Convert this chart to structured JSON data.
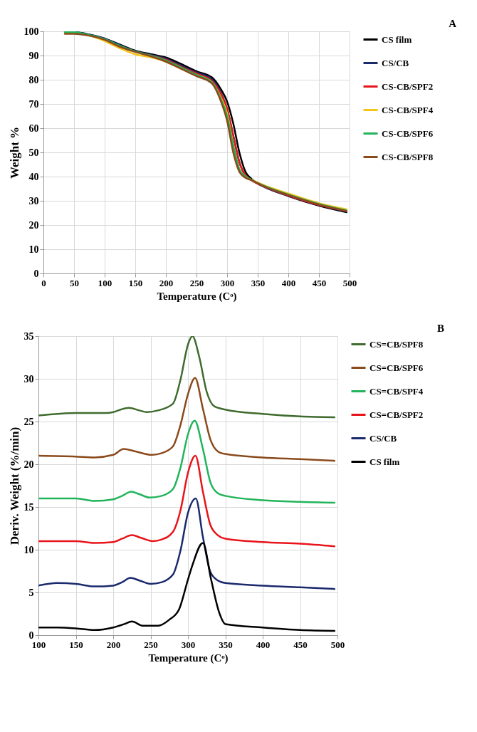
{
  "chart_data": [
    {
      "type": "line",
      "xlabel": "Temperature (Cᵒ)",
      "ylabel": "Weight %",
      "annotations": [
        "A"
      ],
      "xlim": [
        0,
        500
      ],
      "xticks": [
        0,
        50,
        100,
        150,
        200,
        250,
        300,
        350,
        400,
        450,
        500
      ],
      "ylim": [
        0,
        100
      ],
      "yticks": [
        0,
        10,
        20,
        30,
        40,
        50,
        60,
        70,
        80,
        90,
        100
      ],
      "grid": true,
      "legend": "right",
      "x": [
        35,
        50,
        75,
        100,
        125,
        150,
        175,
        200,
        225,
        250,
        275,
        290,
        300,
        310,
        320,
        330,
        340,
        360,
        400,
        450,
        495
      ],
      "series": [
        {
          "name": "CS film",
          "color": "#000000",
          "values": [
            99.5,
            99.6,
            98.7,
            97,
            94.5,
            92,
            90.6,
            89.2,
            86.5,
            83.5,
            81,
            76,
            71,
            62,
            50,
            42,
            39,
            36,
            32,
            28,
            25.3
          ]
        },
        {
          "name": "CS/CB",
          "color": "#1a2a6c",
          "values": [
            99.8,
            99.7,
            98.6,
            97,
            94.3,
            91.8,
            90.3,
            88.7,
            85.8,
            83,
            80.2,
            74.5,
            68,
            57,
            46,
            40.5,
            38.5,
            35.8,
            32,
            28.2,
            25.6
          ]
        },
        {
          "name": "CS-CB/SPF2",
          "color": "#e8141a",
          "values": [
            null,
            null,
            null,
            null,
            null,
            null,
            90,
            88.3,
            85.3,
            82.5,
            79.5,
            74,
            68,
            57,
            46,
            40.5,
            38.5,
            36,
            32.2,
            28.3,
            25.8
          ]
        },
        {
          "name": "CS-CB/SPF4",
          "color": "#f5c518",
          "values": [
            99.3,
            99.2,
            98.2,
            96,
            93,
            90.5,
            89.3,
            87.5,
            84.5,
            82,
            79,
            72.5,
            66,
            53,
            43,
            40,
            38.7,
            36.5,
            33,
            29,
            26.5
          ]
        },
        {
          "name": "CS-CB/SPF6",
          "color": "#22b45a",
          "values": [
            99.7,
            99.6,
            98.5,
            96.8,
            94,
            91.7,
            90,
            88,
            85,
            82,
            79,
            72,
            65,
            53,
            43,
            40,
            38.6,
            36.2,
            32.6,
            28.7,
            26
          ]
        },
        {
          "name": "CS-CB/SPF8",
          "color": "#8b4a1c",
          "values": [
            99,
            99,
            98.2,
            96.5,
            93.6,
            91.5,
            89.7,
            87.5,
            84.5,
            81.5,
            78.5,
            71,
            63,
            50,
            42,
            39.5,
            38.5,
            36,
            32.4,
            28.5,
            25.8
          ]
        }
      ]
    },
    {
      "type": "line",
      "xlabel": "Temperature (Cᵒ)",
      "ylabel": "Deriv. Weight  (%/min)",
      "annotations": [
        "B"
      ],
      "xlim": [
        100,
        500
      ],
      "xticks": [
        100,
        150,
        200,
        250,
        300,
        350,
        400,
        450,
        500
      ],
      "ylim": [
        0,
        35
      ],
      "yticks": [
        0,
        5,
        10,
        15,
        20,
        25,
        30,
        35
      ],
      "grid": true,
      "legend": "right",
      "series": [
        {
          "name": "CS=CB/SPF8",
          "color": "#3f6b2e",
          "x": [
            100,
            150,
            175,
            190,
            200,
            210,
            221,
            235,
            245,
            260,
            280,
            290,
            300,
            306,
            315,
            325,
            335,
            350,
            400,
            450,
            496
          ],
          "values": [
            25.7,
            26.0,
            26.0,
            26.0,
            26.1,
            26.4,
            26.6,
            26.3,
            26.1,
            26.3,
            27.1,
            29.9,
            34,
            35,
            32.6,
            28.5,
            26.8,
            26.4,
            25.9,
            25.6,
            25.5
          ]
        },
        {
          "name": "CS=CB/SPF6",
          "color": "#8b4a1c",
          "x": [
            100,
            150,
            175,
            200,
            214,
            230,
            252,
            265,
            280,
            290,
            300,
            309.5,
            320,
            330,
            340,
            350,
            400,
            450,
            496
          ],
          "values": [
            21.0,
            20.9,
            20.8,
            21.1,
            21.8,
            21.5,
            21.1,
            21.3,
            22.1,
            24.6,
            28.2,
            30.1,
            26.5,
            22.9,
            21.5,
            21.2,
            20.8,
            20.6,
            20.4
          ]
        },
        {
          "name": "CS=CB/SPF4",
          "color": "#22b45a",
          "x": [
            100,
            150,
            175,
            200,
            212,
            224,
            235,
            249,
            265,
            280,
            290,
            300,
            309,
            320,
            330,
            340,
            350,
            400,
            450,
            496
          ],
          "values": [
            16.0,
            16.0,
            15.7,
            15.9,
            16.3,
            16.8,
            16.5,
            16.1,
            16.3,
            17.1,
            19.6,
            23.5,
            25.1,
            21.8,
            17.9,
            16.6,
            16.3,
            15.8,
            15.6,
            15.5
          ]
        },
        {
          "name": "CS=CB/SPF2",
          "color": "#e8141a",
          "x": [
            100,
            150,
            175,
            200,
            212,
            225,
            237,
            253,
            265,
            280,
            290,
            300,
            310,
            320,
            330,
            340,
            350,
            400,
            450,
            496
          ],
          "values": [
            11.0,
            11.0,
            10.8,
            10.9,
            11.3,
            11.7,
            11.4,
            11.0,
            11.2,
            12.1,
            14.6,
            19.0,
            21.0,
            16.8,
            12.9,
            11.7,
            11.3,
            10.9,
            10.7,
            10.4
          ]
        },
        {
          "name": "CS/CB",
          "color": "#1a2a6c",
          "x": [
            100,
            125,
            150,
            175,
            200,
            212,
            223,
            235,
            250,
            265,
            280,
            290,
            300,
            310.5,
            320,
            330,
            340,
            350,
            400,
            450,
            496
          ],
          "values": [
            5.8,
            6.1,
            6.0,
            5.7,
            5.8,
            6.2,
            6.7,
            6.4,
            6.0,
            6.2,
            7.1,
            9.9,
            14.3,
            16.0,
            11.5,
            7.4,
            6.4,
            6.1,
            5.8,
            5.6,
            5.4
          ]
        },
        {
          "name": "CS film",
          "color": "#000000",
          "x": [
            100,
            125,
            150,
            175,
            200,
            215,
            225,
            240,
            260,
            275,
            288,
            300,
            306,
            320,
            331,
            342,
            350,
            400,
            450,
            496
          ],
          "values": [
            0.9,
            0.9,
            0.8,
            0.6,
            0.9,
            1.3,
            1.6,
            1.1,
            1.1,
            1.8,
            3,
            6.5,
            8.2,
            10.8,
            6.5,
            2.6,
            1.3,
            0.9,
            0.6,
            0.5
          ]
        }
      ]
    }
  ]
}
